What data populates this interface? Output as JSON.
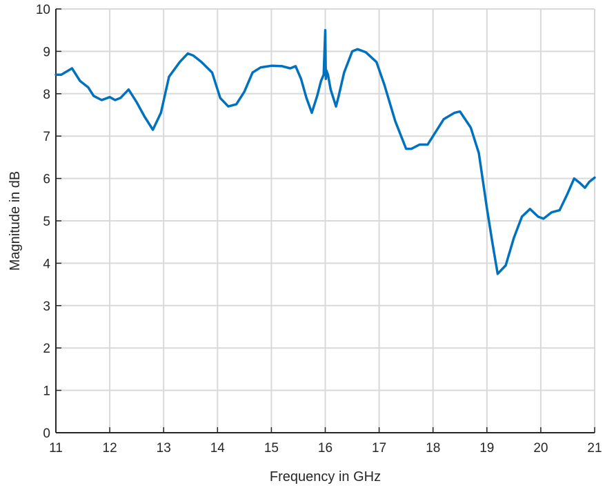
{
  "chart_data": {
    "type": "line",
    "title": "",
    "xlabel": "Frequency in GHz",
    "ylabel": "Magnitude in dB",
    "xlim": [
      11,
      21
    ],
    "ylim": [
      0,
      10
    ],
    "xticks": [
      11,
      12,
      13,
      14,
      15,
      16,
      17,
      18,
      19,
      20,
      21
    ],
    "yticks": [
      0,
      1,
      2,
      3,
      4,
      5,
      6,
      7,
      8,
      9,
      10
    ],
    "grid": true,
    "legend": "none",
    "series": [
      {
        "color": "#0072bd",
        "x": [
          11.0,
          11.1,
          11.3,
          11.45,
          11.6,
          11.7,
          11.85,
          12.0,
          12.1,
          12.2,
          12.35,
          12.5,
          12.65,
          12.8,
          12.95,
          13.1,
          13.3,
          13.45,
          13.55,
          13.7,
          13.9,
          14.05,
          14.2,
          14.35,
          14.5,
          14.65,
          14.8,
          15.0,
          15.2,
          15.35,
          15.45,
          15.55,
          15.65,
          15.75,
          15.85,
          15.92,
          15.97,
          16.0,
          16.01,
          16.02,
          16.05,
          16.1,
          16.2,
          16.25,
          16.35,
          16.5,
          16.6,
          16.75,
          16.95,
          17.1,
          17.3,
          17.5,
          17.6,
          17.75,
          17.9,
          18.0,
          18.2,
          18.4,
          18.5,
          18.7,
          18.85,
          19.0,
          19.1,
          19.2,
          19.35,
          19.5,
          19.65,
          19.8,
          19.95,
          20.05,
          20.2,
          20.35,
          20.5,
          20.62,
          20.72,
          20.82,
          20.9,
          21.0
        ],
        "y": [
          8.45,
          8.45,
          8.6,
          8.3,
          8.15,
          7.95,
          7.85,
          7.92,
          7.85,
          7.9,
          8.1,
          7.8,
          7.45,
          7.15,
          7.55,
          8.4,
          8.75,
          8.95,
          8.9,
          8.75,
          8.5,
          7.9,
          7.7,
          7.75,
          8.05,
          8.5,
          8.62,
          8.66,
          8.65,
          8.6,
          8.65,
          8.35,
          7.9,
          7.55,
          7.95,
          8.3,
          8.45,
          9.5,
          8.35,
          8.55,
          8.45,
          8.1,
          7.7,
          7.95,
          8.5,
          9.0,
          9.05,
          8.98,
          8.75,
          8.2,
          7.35,
          6.7,
          6.7,
          6.8,
          6.8,
          7.0,
          7.4,
          7.55,
          7.58,
          7.2,
          6.6,
          5.3,
          4.5,
          3.75,
          3.95,
          4.6,
          5.1,
          5.28,
          5.1,
          5.05,
          5.2,
          5.25,
          5.65,
          6.0,
          5.9,
          5.78,
          5.92,
          6.02
        ]
      }
    ]
  }
}
